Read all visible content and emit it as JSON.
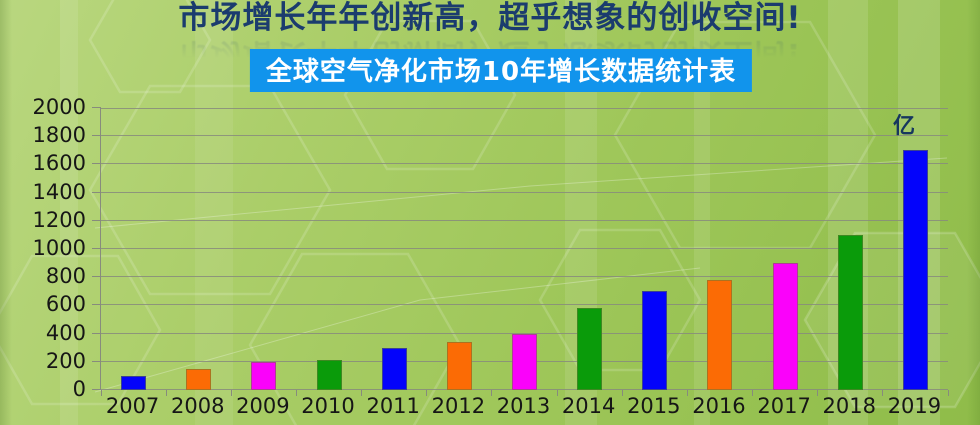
{
  "header": {
    "title": "市场增长年年创新高，超乎想象的创收空间!",
    "banner": "全球空气净化市场10年增长数据统计表"
  },
  "colors": {
    "title_text": "#1b3c6e",
    "banner_bg": "#1194ec",
    "banner_text": "#ffffff",
    "axis": "#878b7d",
    "tick_text": "#161616"
  },
  "chart_data": {
    "type": "bar",
    "title": "全球空气净化市场10年增长数据统计表",
    "unit_label": "亿",
    "categories": [
      "2007",
      "2008",
      "2009",
      "2010",
      "2011",
      "2012",
      "2013",
      "2014",
      "2015",
      "2016",
      "2017",
      "2018",
      "2019"
    ],
    "values": [
      100,
      150,
      200,
      210,
      300,
      340,
      400,
      580,
      700,
      780,
      900,
      1100,
      1700
    ],
    "bar_color_cycle": [
      "#0303fb",
      "#fb6b05",
      "#fa02fa",
      "#0a9b0a"
    ],
    "ylim": [
      0,
      2000
    ],
    "ytick_interval": 200,
    "ytick_labels": [
      "0",
      "200",
      "400",
      "600",
      "800",
      "1000",
      "1200",
      "1400",
      "1600",
      "1800",
      "2000"
    ],
    "xlabel": "",
    "ylabel": "",
    "grid": true,
    "legend_position": "none"
  }
}
